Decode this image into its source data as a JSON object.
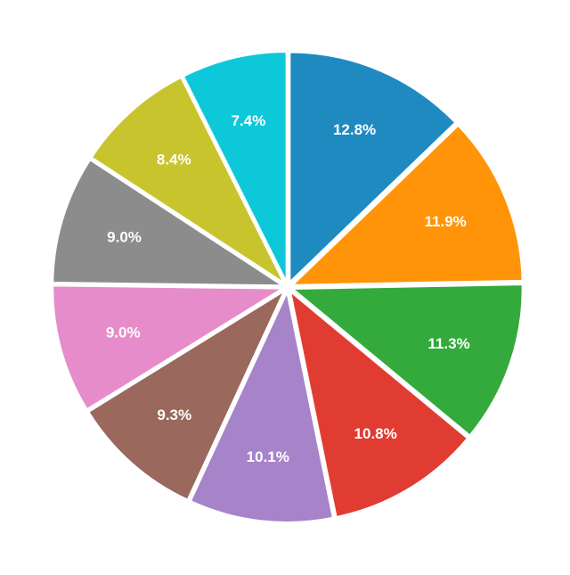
{
  "chart_data": {
    "type": "pie",
    "title": "",
    "start_angle_deg": 0,
    "direction": "clockwise",
    "exploded": true,
    "slices": [
      {
        "label": "12.8%",
        "value": 12.8,
        "color": "#1f8ac0"
      },
      {
        "label": "11.9%",
        "value": 11.9,
        "color": "#ff9408"
      },
      {
        "label": "11.3%",
        "value": 11.3,
        "color": "#33aa3b"
      },
      {
        "label": "10.8%",
        "value": 10.8,
        "color": "#e13c32"
      },
      {
        "label": "10.1%",
        "value": 10.1,
        "color": "#a783c9"
      },
      {
        "label": "9.3%",
        "value": 9.3,
        "color": "#9a685c"
      },
      {
        "label": "9.0%",
        "value": 9.0,
        "color": "#e78cca"
      },
      {
        "label": "9.0%",
        "value": 9.0,
        "color": "#8c8c8c"
      },
      {
        "label": "8.4%",
        "value": 8.4,
        "color": "#c8c42d"
      },
      {
        "label": "7.4%",
        "value": 7.4,
        "color": "#0cc8d8"
      }
    ]
  }
}
